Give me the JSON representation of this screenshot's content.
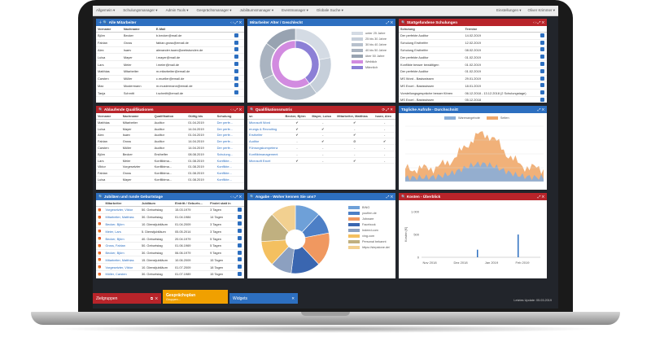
{
  "nav": {
    "left": [
      "Allgemein",
      "Schulungsmanager",
      "Admin Tools",
      "Gesprächsmanager",
      "Jubiläumsmanager",
      "Eventmanager",
      "Globale Suche"
    ],
    "right": [
      "Einstellungen",
      "Oliver Krimmer"
    ]
  },
  "employees": {
    "title": "Alle Mitarbeiter",
    "headers": [
      "Vorname",
      "Nachname",
      "E-Mail"
    ],
    "rows": [
      [
        "Björn",
        "Becker",
        "b.becker@mail.de"
      ],
      [
        "Fabian",
        "Gross",
        "fabian.gross@email.de"
      ],
      [
        "Alex",
        "Isaev",
        "alexander.isaev@webstunden.de"
      ],
      [
        "Luisa",
        "Mayer",
        "l.mayer@mail.de"
      ],
      [
        "Lars",
        "Meier",
        "l.meier@mail.de"
      ],
      [
        "Matthias",
        "Mitarbeiter",
        "m.mitarbeiter@email.de"
      ],
      [
        "Carsten",
        "Müller",
        "c.mueller@email.de"
      ],
      [
        "Max",
        "Mustermann",
        "m.mustermann@email.de"
      ],
      [
        "Tanja",
        "Schmitt",
        "t.schmitt@email.de"
      ]
    ]
  },
  "age": {
    "title": "Mitarbeiter Alter / Geschlecht",
    "legend": [
      "unter 25 Jahre",
      "25 bis 30 Jahre",
      "30 bis 40 Jahre",
      "40 bis 50 Jahre",
      "über 50 Jahre",
      "Weiblich",
      "Männlich"
    ],
    "colors": [
      "#d4dbe4",
      "#c6cfda",
      "#b7c1cd",
      "#a9b3c0",
      "#98a3b1",
      "#d28be0",
      "#8c7fd6"
    ],
    "outer": [
      22,
      18,
      28,
      17,
      15
    ],
    "inner": [
      40,
      60
    ]
  },
  "trainings": {
    "title": "Stattgefundene Schulungen",
    "headers": [
      "Schulung",
      "Termine"
    ],
    "rows": [
      [
        "Der perfekte Auditor",
        "14.02.2019"
      ],
      [
        "Schulung Ersthelfer",
        "12.02.2019"
      ],
      [
        "Schulung Ersthelfer",
        "08.02.2019"
      ],
      [
        "Der perfekte Auditor",
        "01.02.2019"
      ],
      [
        "Konflikte besser bewältigen",
        "01.02.2019"
      ],
      [
        "Der perfekte Auditor",
        "01.02.2019"
      ],
      [
        "MS Word - Basiswissen",
        "29.01.2019"
      ],
      [
        "MS Excel - Basiswissen",
        "18.01.2019"
      ],
      [
        "Vorstellungsgespräche besser führen",
        "06.12.2018 - 13.12.2018 (2 Schulungstage)"
      ],
      [
        "MS Excel - Basiswissen",
        "05.12.2018"
      ]
    ]
  },
  "expiring": {
    "title": "Ablaufende Qualifikationen",
    "headers": [
      "Vorname",
      "Nachname",
      "Qualifikation",
      "Gültig bis",
      "Schulung"
    ],
    "rows": [
      [
        "Matthias",
        "Mitarbeiter",
        "Auditor",
        "01.04.2019",
        "Der perfe..."
      ],
      [
        "Luisa",
        "Mayer",
        "Auditor",
        "14.04.2019",
        "Der perfe..."
      ],
      [
        "Alex",
        "Isaev",
        "Auditor",
        "01.04.2019",
        "Der perfe..."
      ],
      [
        "Fabian",
        "Gross",
        "Auditor",
        "14.04.2019",
        "Der perfe..."
      ],
      [
        "Carsten",
        "Müller",
        "Auditor",
        "14.04.2019",
        "Der perfe..."
      ],
      [
        "Björn",
        "Becker",
        "Ersthelfer",
        "08.08.2019",
        "Schulung..."
      ],
      [
        "Lars",
        "Meier",
        "Konfliktma...",
        "01.08.2019",
        "Konflikte..."
      ],
      [
        "Viktor",
        "Vorgesetzter",
        "Konfliktma...",
        "01.08.2019",
        "Konflikte..."
      ],
      [
        "Fabian",
        "Gross",
        "Konfliktma...",
        "01.08.2019",
        "Konflikte..."
      ],
      [
        "Luisa",
        "Mayer",
        "Konfliktma...",
        "01.08.2019",
        "Konflikte..."
      ]
    ]
  },
  "matrix": {
    "title": "Qualifikationsmatrix",
    "headers": [
      "sn",
      "Becker, Björn",
      "Mayer, Luisa",
      "Mitarbeiter, Matthias",
      "Isaev, Alex"
    ],
    "rows": [
      [
        "Microsoft Word",
        "✔",
        "-",
        "✔",
        "-"
      ],
      [
        "erungs & Recruiting",
        "✔",
        "✔",
        "-",
        "-"
      ],
      [
        "Ersthelfer",
        "✔",
        "-",
        "✔",
        "-"
      ],
      [
        "Auditor",
        "-",
        "✔",
        "⊘",
        "✔"
      ],
      [
        "Führungskompetenz",
        "-",
        "-",
        "-",
        "-"
      ],
      [
        "Konfliktmanagement",
        "-",
        "-",
        "-",
        "-"
      ],
      [
        "Microsoft Excel",
        "✔",
        "-",
        "✔",
        "-"
      ]
    ]
  },
  "orders": {
    "title": "Tägliche Aufrufe - Durchschnitt",
    "legend": [
      "Warenangebote",
      "Seiten"
    ],
    "colors": [
      "#8aaed8",
      "#f0a86a"
    ]
  },
  "jubilees": {
    "title": "Jubiläen und runde Geburtstage",
    "headers": [
      "",
      "Mitarbeiter",
      "Jubiläum",
      "Eintritt / Geburts...",
      "Findet statt in"
    ],
    "rows": [
      [
        "Vorgesetzter, Viktor",
        "50. Geburtstag",
        "15.03.1979",
        "3 Tagen"
      ],
      [
        "Mitarbeiter, Matthias",
        "30. Geburtstag",
        "01.04.1984",
        "14 Tagen"
      ],
      [
        "Becker, Björn",
        "10. Dienstjubiläum",
        "01.04.2009",
        "3 Tagen"
      ],
      [
        "Meier, Lars",
        "5. Dienstjubiläum",
        "05.05.2014",
        "3 Tagen"
      ],
      [
        "Becker, Björn",
        "40. Geburtstag",
        "20.04.1979",
        "5 Tagen"
      ],
      [
        "Gross, Fabian",
        "50. Geburtstag",
        "01.06.1969",
        "5 Tagen"
      ],
      [
        "Becker, Björn",
        "30. Geburtstag",
        "06.06.1979",
        "9 Tagen"
      ],
      [
        "Mitarbeiter, Matthias",
        "15. Dienstjubiläum",
        "10.06.2009",
        "15 Tagen"
      ],
      [
        "Vorgesetzter, Viktor",
        "10. Dienstjubiläum",
        "01.07.2009",
        "18 Tagen"
      ],
      [
        "Müller, Carsten",
        "30. Geburtstag",
        "01.07.1989",
        "15 Tagen"
      ]
    ]
  },
  "source": {
    "title": "Angabe - Woher kennen Sie uns?",
    "legend": [
      "BING",
      "youfirm.de",
      "Jobware",
      "Facebook",
      "Indeed.com",
      "xing.com",
      "Personal bekannt",
      "https://stepstone.de/"
    ],
    "colors": [
      "#6ea0d8",
      "#4d7fc6",
      "#f09860",
      "#3a66b0",
      "#8ca0c0",
      "#f4c060",
      "#c0b080",
      "#f2d090"
    ],
    "values": [
      12,
      10,
      16,
      14,
      10,
      12,
      14,
      12
    ]
  },
  "costs": {
    "title": "Kosten - Überblick",
    "ylabel": "Kosten [€]",
    "yticks": [
      "1.000",
      "500",
      "0"
    ],
    "xticks": [
      "Nov 2018",
      "Dez 2018",
      "Jan 2019",
      "Feb 2019"
    ]
  },
  "dock": [
    {
      "label": "Zielgruppen",
      "color": "#b8242a"
    },
    {
      "label": "Gesprächsplan",
      "sub": "Gruppen...",
      "color": "#f0a000"
    },
    {
      "label": "Widgets",
      "color": "#2d6fc0"
    }
  ],
  "footer": "Letztes Update: 05.03.2019"
}
